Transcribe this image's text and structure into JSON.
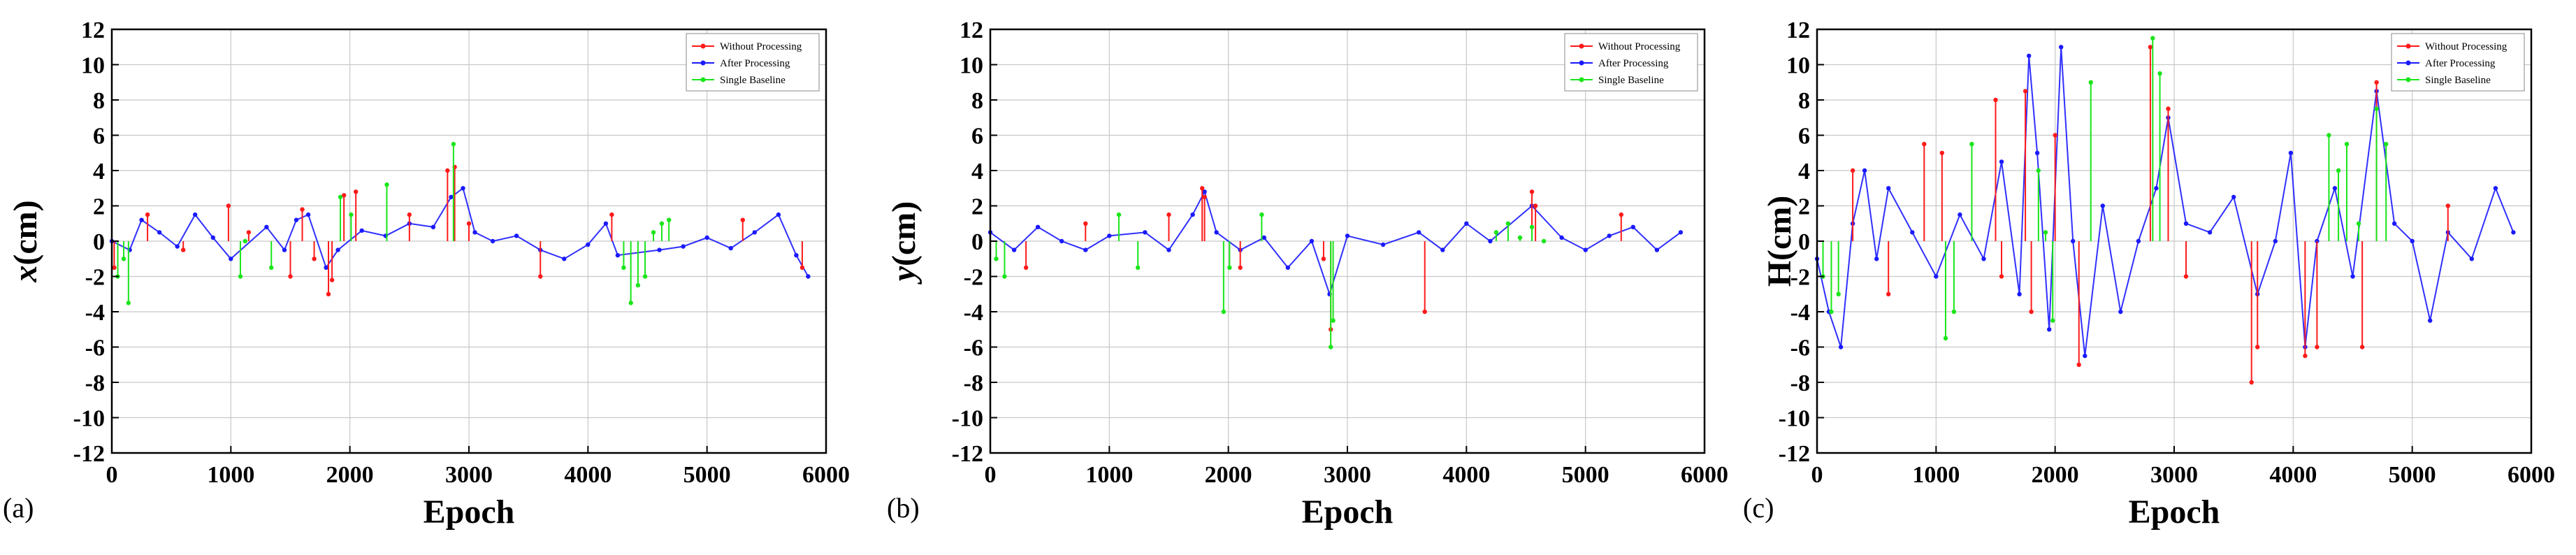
{
  "figure": {
    "panels": [
      "(a)",
      "(b)",
      "(c)"
    ]
  },
  "colors": {
    "without_processing": "#ff1a1a",
    "after_processing": "#1a1aff",
    "single_baseline": "#19e619"
  },
  "chart_data": [
    {
      "type": "line",
      "panel_label": "(a)",
      "xlabel": "Epoch",
      "ylabel": "x(cm)",
      "ylabel_italic_part": "x",
      "ylabel_rest": "(cm)",
      "xlim": [
        0,
        6000
      ],
      "ylim": [
        -12,
        12
      ],
      "xticks": [
        0,
        1000,
        2000,
        3000,
        4000,
        5000,
        6000
      ],
      "yticks": [
        12,
        10,
        8,
        6,
        4,
        2,
        0,
        -2,
        -4,
        -6,
        -8,
        -10,
        -12
      ],
      "grid": true,
      "legend": "top-right",
      "legend_entries": [
        "Without Processing",
        "After Processing",
        "Single Baseline"
      ],
      "series": [
        {
          "name": "Without Processing",
          "x": [
            20,
            300,
            600,
            980,
            1150,
            1500,
            1600,
            1700,
            1820,
            1850,
            1950,
            2050,
            2500,
            2820,
            2880,
            3000,
            3600,
            4200,
            5300,
            5800
          ],
          "y": [
            -1.5,
            1.5,
            -0.5,
            2.0,
            0.5,
            -2.0,
            1.8,
            -1.0,
            -3.0,
            -2.2,
            2.6,
            2.8,
            1.5,
            4.0,
            4.2,
            1.0,
            -2.0,
            1.5,
            1.2,
            -1.5
          ]
        },
        {
          "name": "After Processing",
          "x": [
            0,
            150,
            250,
            400,
            550,
            700,
            850,
            1000,
            1300,
            1450,
            1550,
            1650,
            1800,
            1900,
            2100,
            2300,
            2500,
            2700,
            2850,
            2950,
            3050,
            3200,
            3400,
            3600,
            3800,
            4000,
            4150,
            4250,
            4600,
            4800,
            5000,
            5200,
            5400,
            5600,
            5750,
            5850
          ],
          "y": [
            0.0,
            -0.5,
            1.2,
            0.5,
            -0.3,
            1.5,
            0.2,
            -1.0,
            0.8,
            -0.5,
            1.2,
            1.5,
            -1.5,
            -0.5,
            0.6,
            0.3,
            1.0,
            0.8,
            2.5,
            3.0,
            0.5,
            0.0,
            0.3,
            -0.5,
            -1.0,
            -0.2,
            1.0,
            -0.8,
            -0.5,
            -0.3,
            0.2,
            -0.4,
            0.5,
            1.5,
            -0.8,
            -2.0
          ]
        },
        {
          "name": "Single Baseline",
          "x": [
            50,
            100,
            140,
            1080,
            1120,
            1340,
            1920,
            2010,
            2310,
            2870,
            4300,
            4360,
            4420,
            4480,
            4550,
            4620,
            4680
          ],
          "y": [
            -2.0,
            -1.0,
            -3.5,
            -2.0,
            0.0,
            -1.5,
            2.5,
            1.5,
            3.2,
            5.5,
            -1.5,
            -3.5,
            -2.5,
            -2.0,
            0.5,
            1.0,
            1.2
          ]
        }
      ]
    },
    {
      "type": "line",
      "panel_label": "(b)",
      "xlabel": "Epoch",
      "ylabel": "y(cm)",
      "ylabel_italic_part": "y",
      "ylabel_rest": "(cm)",
      "xlim": [
        0,
        6000
      ],
      "ylim": [
        -12,
        12
      ],
      "xticks": [
        0,
        1000,
        2000,
        3000,
        4000,
        5000,
        6000
      ],
      "yticks": [
        12,
        10,
        8,
        6,
        4,
        2,
        0,
        -2,
        -4,
        -6,
        -8,
        -10,
        -12
      ],
      "grid": true,
      "legend": "top-right",
      "legend_entries": [
        "Without Processing",
        "After Processing",
        "Single Baseline"
      ],
      "series": [
        {
          "name": "Without Processing",
          "x": [
            300,
            800,
            1500,
            1780,
            1800,
            2100,
            2800,
            2860,
            3650,
            4550,
            4580,
            5300
          ],
          "y": [
            -1.5,
            1.0,
            1.5,
            3.0,
            2.5,
            -1.5,
            -1.0,
            -5.0,
            -4.0,
            2.8,
            2.0,
            1.5
          ]
        },
        {
          "name": "After Processing",
          "x": [
            0,
            200,
            400,
            600,
            800,
            1000,
            1300,
            1500,
            1700,
            1800,
            1900,
            2100,
            2300,
            2500,
            2700,
            2850,
            3000,
            3300,
            3600,
            3800,
            4000,
            4200,
            4550,
            4800,
            5000,
            5200,
            5400,
            5600,
            5800
          ],
          "y": [
            0.5,
            -0.5,
            0.8,
            0.0,
            -0.5,
            0.3,
            0.5,
            -0.5,
            1.5,
            2.8,
            0.5,
            -0.5,
            0.2,
            -1.5,
            0.0,
            -3.0,
            0.3,
            -0.2,
            0.5,
            -0.5,
            1.0,
            0.0,
            2.0,
            0.2,
            -0.5,
            0.3,
            0.8,
            -0.5,
            0.5
          ]
        },
        {
          "name": "Single Baseline",
          "x": [
            50,
            120,
            1080,
            1240,
            1960,
            2010,
            2280,
            2860,
            2880,
            4250,
            4350,
            4450,
            4550,
            4650
          ],
          "y": [
            -1.0,
            -2.0,
            1.5,
            -1.5,
            -4.0,
            -1.5,
            1.5,
            -6.0,
            -4.5,
            0.5,
            1.0,
            0.2,
            0.8,
            0.0
          ]
        }
      ]
    },
    {
      "type": "line",
      "panel_label": "(c)",
      "xlabel": "Epoch",
      "ylabel": "H(cm)",
      "ylabel_italic_part": "",
      "ylabel_rest": "H(cm)",
      "xlim": [
        0,
        6000
      ],
      "ylim": [
        -12,
        12
      ],
      "xticks": [
        0,
        1000,
        2000,
        3000,
        4000,
        5000,
        6000
      ],
      "yticks": [
        12,
        10,
        8,
        6,
        4,
        2,
        0,
        -2,
        -4,
        -6,
        -8,
        -10,
        -12
      ],
      "grid": true,
      "legend": "top-right",
      "legend_entries": [
        "Without Processing",
        "After Processing",
        "Single Baseline"
      ],
      "series": [
        {
          "name": "Without Processing",
          "x": [
            300,
            600,
            900,
            1050,
            1500,
            1550,
            1750,
            1800,
            2000,
            2200,
            2800,
            2950,
            3100,
            3650,
            3700,
            4100,
            4200,
            4580,
            4700,
            5300
          ],
          "y": [
            4.0,
            -3.0,
            5.5,
            5.0,
            8.0,
            -2.0,
            8.5,
            -4.0,
            6.0,
            -7.0,
            11.0,
            7.5,
            -2.0,
            -8.0,
            -6.0,
            -6.5,
            -6.0,
            -6.0,
            9.0,
            2.0
          ]
        },
        {
          "name": "After Processing",
          "x": [
            0,
            100,
            200,
            300,
            400,
            500,
            600,
            800,
            1000,
            1200,
            1400,
            1550,
            1700,
            1780,
            1850,
            1950,
            2050,
            2150,
            2250,
            2400,
            2550,
            2700,
            2850,
            2950,
            3100,
            3300,
            3500,
            3700,
            3850,
            3980,
            4100,
            4200,
            4350,
            4500,
            4700,
            4850,
            5000,
            5150,
            5300,
            5500,
            5700,
            5850
          ],
          "y": [
            -1.0,
            -4.0,
            -6.0,
            1.0,
            4.0,
            -1.0,
            3.0,
            0.5,
            -2.0,
            1.5,
            -1.0,
            4.5,
            -3.0,
            10.5,
            5.0,
            -5.0,
            11.0,
            0.0,
            -6.5,
            2.0,
            -4.0,
            0.0,
            3.0,
            7.0,
            1.0,
            0.5,
            2.5,
            -3.0,
            0.0,
            5.0,
            -6.0,
            0.0,
            3.0,
            -2.0,
            8.5,
            1.0,
            0.0,
            -4.5,
            0.5,
            -1.0,
            3.0,
            0.5
          ]
        },
        {
          "name": "Single Baseline",
          "x": [
            50,
            120,
            180,
            1080,
            1150,
            1300,
            1860,
            1920,
            1980,
            2300,
            2820,
            2880,
            4300,
            4380,
            4450,
            4550,
            4700,
            4780
          ],
          "y": [
            -2.0,
            -4.0,
            -3.0,
            -5.5,
            -4.0,
            5.5,
            4.0,
            0.5,
            -4.5,
            9.0,
            11.5,
            9.5,
            6.0,
            4.0,
            5.5,
            1.0,
            7.5,
            5.5
          ]
        }
      ]
    }
  ]
}
